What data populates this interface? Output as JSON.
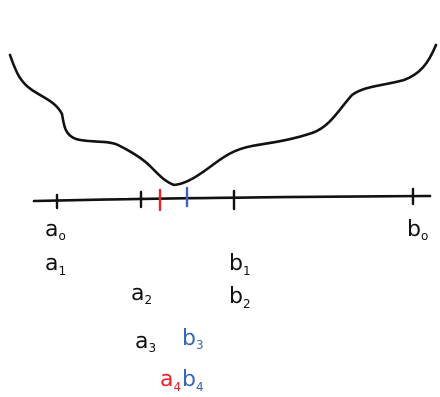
{
  "colors": {
    "ink": "#111111",
    "red": "#e8212b",
    "blue": "#3a66b8"
  },
  "labels": {
    "a0": {
      "base": "a",
      "sub": "o"
    },
    "a1": {
      "base": "a",
      "sub": "1"
    },
    "a2": {
      "base": "a",
      "sub": "2"
    },
    "a3": {
      "base": "a",
      "sub": "3"
    },
    "a4": {
      "base": "a",
      "sub": "4"
    },
    "b0": {
      "base": "b",
      "sub": "o"
    },
    "b1": {
      "base": "b",
      "sub": "1"
    },
    "b2": {
      "base": "b",
      "sub": "2"
    },
    "b3": {
      "base": "b",
      "sub": "3"
    },
    "b4": {
      "base": "b",
      "sub": "4"
    }
  }
}
